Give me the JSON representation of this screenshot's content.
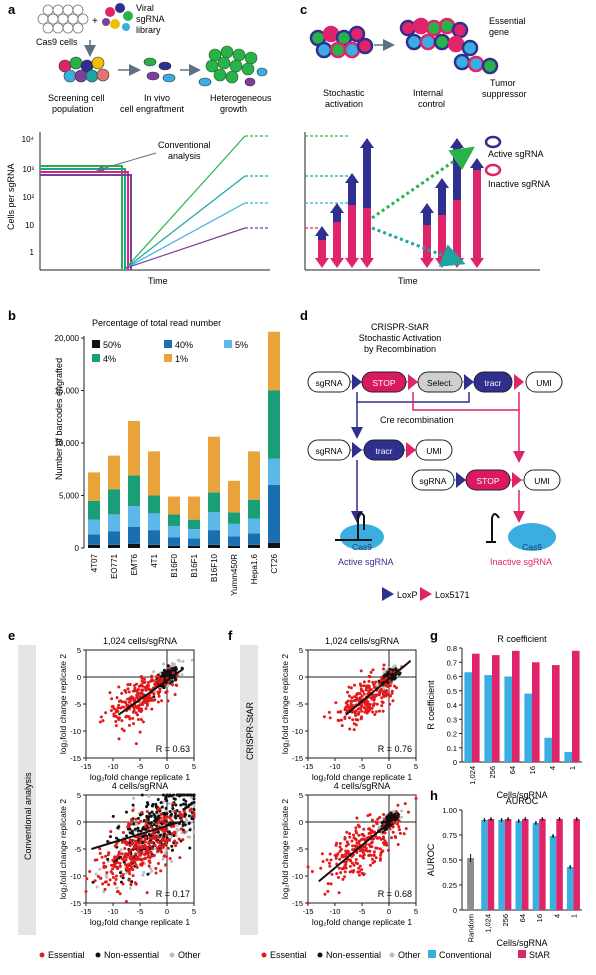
{
  "panels": {
    "a": {
      "letter": "a",
      "labels": {
        "cells": "Cas9 cells",
        "viral": [
          "Viral",
          "sgRNA",
          "library"
        ],
        "screening": [
          "Screening cell",
          "population"
        ],
        "engraft": [
          "In vivo",
          "cell engraftment"
        ],
        "growth": [
          "Heterogeneous",
          "growth"
        ],
        "analysis": [
          "Conventional",
          "analysis"
        ]
      },
      "ylabel": "Cells per sgRNA",
      "xlabel": "Time",
      "yticks": [
        "10⁴",
        "10³",
        "10²",
        "10",
        "1"
      ]
    },
    "c": {
      "letter": "c",
      "labels": {
        "stoch": [
          "Stochastic",
          "activation"
        ],
        "essential": [
          "Essential",
          "gene"
        ],
        "control": [
          "Internal",
          "control"
        ],
        "tumor": [
          "Tumor",
          "suppressor"
        ],
        "active": "Active sgRNA",
        "inactive": "Inactive sgRNA"
      },
      "xlabel": "Time"
    },
    "d": {
      "letter": "d",
      "title": [
        "CRISPR-StAR",
        "Stochastic Activation",
        "by Recombination"
      ],
      "boxes": {
        "sgrna": "sgRNA",
        "stop": "STOP",
        "select": "Select.",
        "tracr": "tracr",
        "umi": "UMI"
      },
      "cre": "Cre recombination",
      "active": "Active sgRNA",
      "inactive": "Inactive sgRNA",
      "cas9": "Cas9",
      "legend": {
        "loxp": "LoxP",
        "lox5171": "Lox5171"
      },
      "colors": {
        "loxp": "#2f2f8f",
        "lox5171": "#e0246b",
        "stop": "#d81b60",
        "tracr": "#2f2f8f",
        "cas9": "#3aaee0"
      }
    },
    "e": {
      "letter": "e",
      "side_label": "Conventional analysis"
    },
    "f": {
      "letter": "f",
      "side_label": "CRISPR-StAR"
    }
  },
  "legend_efg": {
    "essential": "Essential",
    "nonessential": "Non-essential",
    "other": "Other"
  },
  "scatter_text": {
    "ylabel": "log₂fold change replicate 2",
    "xlabel": "log₂fold change replicate 1"
  },
  "chart_data": [
    {
      "id": "b",
      "type": "bar",
      "stacked": true,
      "title": "Percentage of total read number",
      "ylabel": "Number of barcodes engrafted",
      "categories": [
        "4T07",
        "EO771",
        "EMT6",
        "4T1",
        "B16F0",
        "B16F1",
        "B16F10",
        "Yumm450R",
        "Hepa1.6",
        "CT26"
      ],
      "ylim": [
        0,
        20000
      ],
      "yticks": [
        0,
        5000,
        10000,
        15000,
        20000
      ],
      "ytick_labels": [
        "0",
        "5,000",
        "10,000",
        "15,000",
        "20,000"
      ],
      "legend": [
        {
          "name": "50%",
          "color": "#111111"
        },
        {
          "name": "40%",
          "color": "#1a6fb0"
        },
        {
          "name": "5%",
          "color": "#5bb8e8"
        },
        {
          "name": "4%",
          "color": "#1a9e77"
        },
        {
          "name": "1%",
          "color": "#e8a33a"
        }
      ],
      "series": [
        {
          "name": "50%",
          "values": [
            300,
            300,
            400,
            300,
            200,
            200,
            300,
            200,
            300,
            500
          ]
        },
        {
          "name": "40%",
          "values": [
            1000,
            1300,
            1600,
            1400,
            800,
            700,
            1400,
            900,
            1100,
            5500
          ]
        },
        {
          "name": "5%",
          "values": [
            1400,
            1600,
            2000,
            1600,
            1100,
            900,
            1700,
            1200,
            1400,
            2500
          ]
        },
        {
          "name": "4%",
          "values": [
            1800,
            2400,
            2900,
            1700,
            1100,
            900,
            1900,
            1100,
            1800,
            6500
          ]
        },
        {
          "name": "1%",
          "values": [
            2700,
            3200,
            5200,
            4200,
            1700,
            2200,
            5300,
            3000,
            4600,
            5600
          ]
        }
      ]
    },
    {
      "id": "e1",
      "type": "scatter",
      "title": "1,024 cells/sgRNA",
      "annotation": "R = 0.63",
      "xlim": [
        -15,
        5
      ],
      "ylim": [
        -15,
        5
      ],
      "xticks": [
        -15,
        -10,
        -5,
        0,
        5
      ],
      "yticks": [
        -15,
        -10,
        -5,
        0,
        5
      ],
      "groups": [
        {
          "name": "Essential",
          "color": "#e31a1c",
          "center": [
            -5,
            -4
          ],
          "spread": [
            3,
            2.8
          ],
          "n": 240
        },
        {
          "name": "Non-essential",
          "color": "#111111",
          "center": [
            0,
            0
          ],
          "spread": [
            0.9,
            0.9
          ],
          "n": 220
        },
        {
          "name": "Other",
          "color": "#bdbdbd",
          "center": [
            0,
            0
          ],
          "spread": [
            1.2,
            1.2
          ],
          "n": 120
        }
      ],
      "fit": {
        "x": [
          -9,
          3
        ],
        "y": [
          -7,
          1.5
        ]
      }
    },
    {
      "id": "e2",
      "type": "scatter",
      "title": "4 cells/sgRNA",
      "annotation": "R = 0.17",
      "xlim": [
        -15,
        5
      ],
      "ylim": [
        -15,
        5
      ],
      "xticks": [
        -15,
        -10,
        -5,
        0,
        5
      ],
      "yticks": [
        -15,
        -10,
        -5,
        0,
        5
      ],
      "groups": [
        {
          "name": "Essential",
          "color": "#e31a1c",
          "center": [
            -5,
            -5
          ],
          "spread": [
            4,
            4
          ],
          "n": 320
        },
        {
          "name": "Non-essential",
          "color": "#111111",
          "center": [
            -2,
            -1
          ],
          "spread": [
            4,
            4
          ],
          "n": 320
        },
        {
          "name": "Other",
          "color": "#bdbdbd",
          "center": [
            -2,
            -2
          ],
          "spread": [
            4.5,
            4.5
          ],
          "n": 180
        }
      ],
      "fit": {
        "x": [
          -14,
          3
        ],
        "y": [
          -5,
          0.2
        ]
      }
    },
    {
      "id": "f1",
      "type": "scatter",
      "title": "1,024 cells/sgRNA",
      "annotation": "R = 0.76",
      "xlim": [
        -15,
        5
      ],
      "ylim": [
        -15,
        5
      ],
      "xticks": [
        -15,
        -10,
        -5,
        0,
        5
      ],
      "yticks": [
        -15,
        -10,
        -5,
        0,
        5
      ],
      "groups": [
        {
          "name": "Essential",
          "color": "#e31a1c",
          "center": [
            -4,
            -4
          ],
          "spread": [
            2.5,
            2.5
          ],
          "n": 240
        },
        {
          "name": "Non-essential",
          "color": "#111111",
          "center": [
            0,
            0
          ],
          "spread": [
            0.7,
            0.7
          ],
          "n": 200
        },
        {
          "name": "Other",
          "color": "#bdbdbd",
          "center": [
            0,
            0
          ],
          "spread": [
            1,
            1
          ],
          "n": 100
        }
      ],
      "fit": {
        "x": [
          -8,
          4
        ],
        "y": [
          -7,
          3
        ]
      }
    },
    {
      "id": "f2",
      "type": "scatter",
      "title": "4 cells/sgRNA",
      "annotation": "R = 0.68",
      "xlim": [
        -15,
        5
      ],
      "ylim": [
        -15,
        5
      ],
      "xticks": [
        -15,
        -10,
        -5,
        0,
        5
      ],
      "yticks": [
        -15,
        -10,
        -5,
        0,
        5
      ],
      "groups": [
        {
          "name": "Essential",
          "color": "#e31a1c",
          "center": [
            -5,
            -5
          ],
          "spread": [
            3.5,
            3.5
          ],
          "n": 260
        },
        {
          "name": "Non-essential",
          "color": "#111111",
          "center": [
            0,
            0
          ],
          "spread": [
            0.7,
            0.7
          ],
          "n": 180
        },
        {
          "name": "Other",
          "color": "#bdbdbd",
          "center": [
            0,
            0
          ],
          "spread": [
            1,
            1
          ],
          "n": 100
        }
      ],
      "fit": {
        "x": [
          -13,
          2
        ],
        "y": [
          -11,
          1.5
        ]
      }
    },
    {
      "id": "g",
      "type": "bar",
      "title": "R coefficient",
      "ylabel": "R coefficient",
      "xlabel": "Cells/sgRNA",
      "categories": [
        "1,024",
        "256",
        "64",
        "16",
        "4",
        "1"
      ],
      "ylim": [
        0,
        0.8
      ],
      "yticks": [
        0,
        0.1,
        0.2,
        0.3,
        0.4,
        0.5,
        0.6,
        0.7,
        0.8
      ],
      "ytick_labels": [
        "0",
        "0.1",
        "0.2",
        "0.3",
        "0.4",
        "0.5",
        "0.6",
        "0.7",
        "0.8"
      ],
      "series": [
        {
          "name": "Conventional",
          "color": "#3aaee0",
          "values": [
            0.63,
            0.61,
            0.6,
            0.48,
            0.17,
            0.07
          ]
        },
        {
          "name": "StAR",
          "color": "#e0246b",
          "values": [
            0.76,
            0.75,
            0.78,
            0.7,
            0.68,
            0.78
          ]
        }
      ]
    },
    {
      "id": "h",
      "type": "bar",
      "title": "AUROC",
      "ylabel": "AUROC",
      "xlabel": "Cells/sgRNA",
      "categories": [
        "Random",
        "1,024",
        "256",
        "64",
        "16",
        "4",
        "1"
      ],
      "ylim": [
        0,
        1.0
      ],
      "yticks": [
        0,
        0.25,
        0.5,
        0.75,
        1.0
      ],
      "ytick_labels": [
        "0",
        "0.25",
        "0.50",
        "0.75",
        "1.00"
      ],
      "random": {
        "value": 0.52,
        "color": "#8c8c8c"
      },
      "series": [
        {
          "name": "Conventional",
          "color": "#3aaee0",
          "values": [
            null,
            0.9,
            0.9,
            0.89,
            0.87,
            0.74,
            0.43
          ]
        },
        {
          "name": "StAR",
          "color": "#e0246b",
          "values": [
            null,
            0.91,
            0.91,
            0.91,
            0.91,
            0.91,
            0.91
          ]
        }
      ],
      "legend": [
        "Conventional",
        "StAR"
      ]
    }
  ]
}
